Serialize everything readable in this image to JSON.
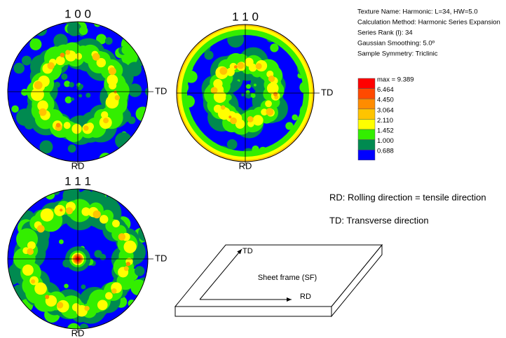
{
  "pole_figures": [
    {
      "title": "1 0 0",
      "td": "TD",
      "rd": "RD"
    },
    {
      "title": "1 1 0",
      "td": "TD",
      "rd": "RD"
    },
    {
      "title": "1 1 1",
      "td": "TD",
      "rd": "RD"
    }
  ],
  "info": [
    "Texture Name: Harmonic: L=34, HW=5.0",
    "Calculation Method: Harmonic Series Expansion",
    "Series Rank (l): 34",
    "Gaussian Smoothing: 5.0º",
    "Sample Symmetry: Triclinic"
  ],
  "legend": {
    "levels": [
      {
        "label": "max = 9.389",
        "color": "#ff0000"
      },
      {
        "label": "6.464",
        "color": "#ff4a00"
      },
      {
        "label": "4.450",
        "color": "#ff8c00"
      },
      {
        "label": "3.064",
        "color": "#ffc400"
      },
      {
        "label": "2.110",
        "color": "#ffff00"
      },
      {
        "label": "1.452",
        "color": "#33ee00"
      },
      {
        "label": "1.000",
        "color": "#008a50"
      },
      {
        "label": "0.688",
        "color": "#0000ff"
      }
    ]
  },
  "notes": [
    "RD: Rolling direction = tensile direction",
    "TD: Transverse direction"
  ],
  "sheet_frame": {
    "label": "Sheet frame (SF)",
    "td": "TD",
    "rd": "RD"
  }
}
